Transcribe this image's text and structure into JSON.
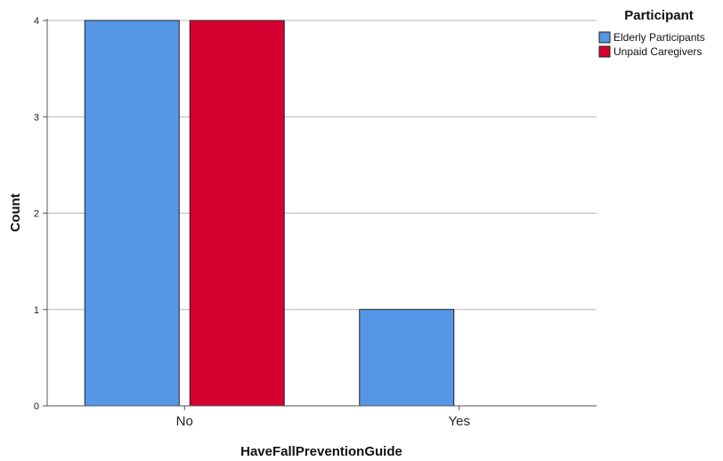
{
  "chart_data": {
    "type": "bar",
    "categories": [
      "No",
      "Yes"
    ],
    "series": [
      {
        "name": "Elderly Participants",
        "values": [
          4,
          1
        ],
        "color": "#5596e6"
      },
      {
        "name": "Unpaid Caregivers",
        "values": [
          4,
          0
        ],
        "color": "#d5002f"
      }
    ],
    "xlabel": "HaveFallPreventionGuide",
    "ylabel": "Count",
    "ylim": [
      0,
      4
    ],
    "yticks": [
      0,
      1,
      2,
      3,
      4
    ],
    "grid": true,
    "legend": {
      "title": "Participant",
      "placement": "top-right"
    }
  }
}
